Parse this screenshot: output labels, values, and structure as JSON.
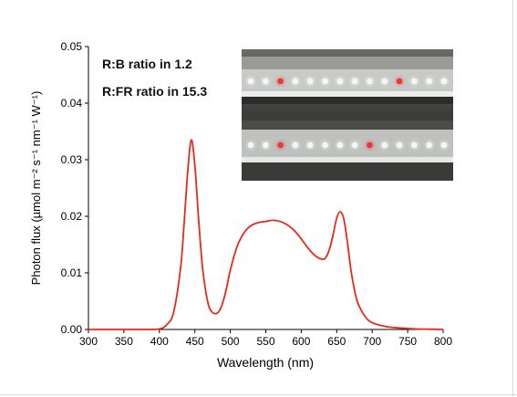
{
  "chart_data": {
    "type": "line",
    "xlabel": "Wavelength (nm)",
    "ylabel": "Photon flux (µmol m⁻² s⁻¹ nm⁻¹ W⁻¹)",
    "xlim": [
      300,
      800
    ],
    "ylim": [
      0,
      0.05
    ],
    "x_ticks": [
      "300",
      "350",
      "400",
      "450",
      "500",
      "550",
      "600",
      "650",
      "700",
      "750",
      "800"
    ],
    "y_ticks": [
      "0.00",
      "0.01",
      "0.02",
      "0.03",
      "0.04",
      "0.05"
    ],
    "annotations": [
      "R:B ratio in 1.2",
      "R:FR ratio in 15.3"
    ],
    "series_color": "#e8291c",
    "series": [
      {
        "x": [
          300,
          380,
          400,
          410,
          420,
          430,
          435,
          440,
          445,
          450,
          455,
          460,
          465,
          470,
          475,
          480,
          485,
          490,
          495,
          500,
          510,
          520,
          530,
          540,
          550,
          560,
          570,
          580,
          590,
          600,
          610,
          620,
          630,
          635,
          640,
          645,
          650,
          655,
          660,
          665,
          670,
          675,
          680,
          690,
          700,
          720,
          740,
          760,
          780,
          800
        ],
        "y": [
          0.0,
          0.0,
          0.0001,
          0.0008,
          0.003,
          0.011,
          0.019,
          0.028,
          0.0335,
          0.029,
          0.02,
          0.012,
          0.007,
          0.004,
          0.003,
          0.0028,
          0.0034,
          0.005,
          0.0075,
          0.0105,
          0.0148,
          0.0172,
          0.0184,
          0.0189,
          0.0191,
          0.0193,
          0.0191,
          0.0185,
          0.0175,
          0.016,
          0.0143,
          0.013,
          0.0124,
          0.0128,
          0.0143,
          0.0168,
          0.0197,
          0.0208,
          0.0195,
          0.0155,
          0.0105,
          0.007,
          0.0046,
          0.0023,
          0.0012,
          0.0005,
          0.00025,
          0.0001,
          5e-05,
          0.0
        ]
      }
    ]
  },
  "photo": {
    "led_white": "#f4f6f8",
    "led_red": "#e23b3b",
    "bar_top_leds": [
      "w",
      "w",
      "r",
      "w",
      "w",
      "w",
      "w",
      "w",
      "w",
      "w",
      "r",
      "w",
      "w",
      "w"
    ],
    "bar_bottom_leds": [
      "w",
      "w",
      "r",
      "w",
      "w",
      "w",
      "w",
      "w",
      "r",
      "w",
      "w",
      "w",
      "w",
      "w"
    ]
  }
}
